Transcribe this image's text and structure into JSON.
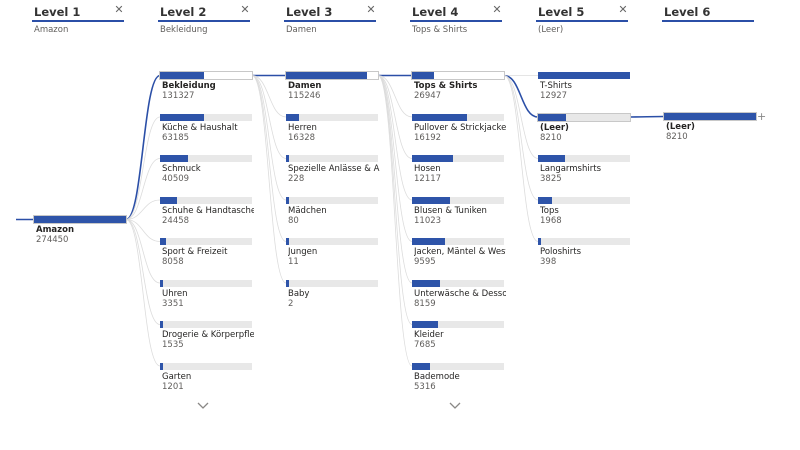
{
  "levels": [
    {
      "title": "Level 1",
      "subtitle": "Amazon"
    },
    {
      "title": "Level 2",
      "subtitle": "Bekleidung"
    },
    {
      "title": "Level 3",
      "subtitle": "Damen"
    },
    {
      "title": "Level 4",
      "subtitle": "Tops & Shirts"
    },
    {
      "title": "Level 5",
      "subtitle": "(Leer)"
    },
    {
      "title": "Level 6",
      "subtitle": ""
    }
  ],
  "columns": [
    {
      "nodes": [
        {
          "name": "Amazon",
          "value": "274450"
        }
      ]
    },
    {
      "nodes": [
        {
          "name": "Bekleidung",
          "value": "131327"
        },
        {
          "name": "Küche & Haushalt",
          "value": "63185"
        },
        {
          "name": "Schmuck",
          "value": "40509"
        },
        {
          "name": "Schuhe & Handtaschen",
          "value": "24458"
        },
        {
          "name": "Sport & Freizeit",
          "value": "8058"
        },
        {
          "name": "Uhren",
          "value": "3351"
        },
        {
          "name": "Drogerie & Körperpfle...",
          "value": "1535"
        },
        {
          "name": "Garten",
          "value": "1201"
        }
      ]
    },
    {
      "nodes": [
        {
          "name": "Damen",
          "value": "115246"
        },
        {
          "name": "Herren",
          "value": "16328"
        },
        {
          "name": "Spezielle Anlässe & Ar...",
          "value": "228"
        },
        {
          "name": "Mädchen",
          "value": "80"
        },
        {
          "name": "Jungen",
          "value": "11"
        },
        {
          "name": "Baby",
          "value": "2"
        }
      ]
    },
    {
      "nodes": [
        {
          "name": "Tops & Shirts",
          "value": "26947"
        },
        {
          "name": "Pullover & Strickjacken",
          "value": "16192"
        },
        {
          "name": "Hosen",
          "value": "12117"
        },
        {
          "name": "Blusen & Tuniken",
          "value": "11023"
        },
        {
          "name": "Jacken, Mäntel & West...",
          "value": "9595"
        },
        {
          "name": "Unterwäsche & Dessous",
          "value": "8159"
        },
        {
          "name": "Kleider",
          "value": "7685"
        },
        {
          "name": "Bademode",
          "value": "5316"
        }
      ]
    },
    {
      "nodes": [
        {
          "name": "T-Shirts",
          "value": "12927"
        },
        {
          "name": "(Leer)",
          "value": "8210"
        },
        {
          "name": "Langarmshirts",
          "value": "3825"
        },
        {
          "name": "Tops",
          "value": "1968"
        },
        {
          "name": "Poloshirts",
          "value": "398"
        }
      ]
    },
    {
      "nodes": [
        {
          "name": "(Leer)",
          "value": "8210"
        }
      ]
    }
  ],
  "selected": [
    0,
    0,
    0,
    0,
    1,
    0
  ],
  "icons": {
    "close": "close-icon",
    "expand": "chevron-down-icon",
    "add": "plus-icon"
  },
  "colors": {
    "accent": "#2e54a9",
    "track": "#e8e8e8",
    "link": "#2b4fa7"
  }
}
